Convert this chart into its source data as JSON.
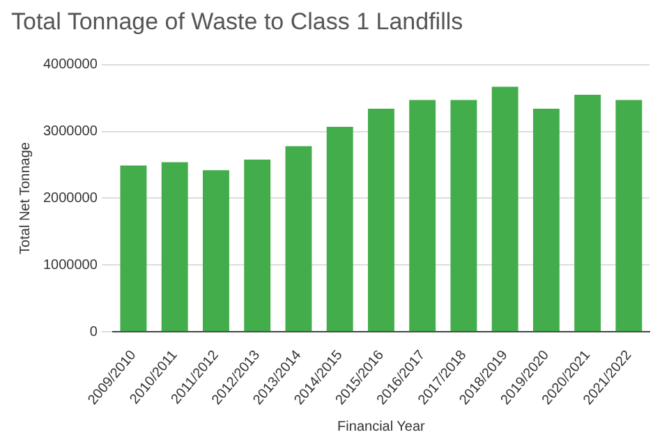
{
  "chart_data": {
    "type": "bar",
    "title": "Total Tonnage of Waste to Class 1 Landfills",
    "xlabel": "Financial Year",
    "ylabel": "Total Net Tonnage",
    "categories": [
      "2009/2010",
      "2010/2011",
      "2011/2012",
      "2012/2013",
      "2013/2014",
      "2014/2015",
      "2015/2016",
      "2016/2017",
      "2017/2018",
      "2018/2019",
      "2019/2020",
      "2020/2021",
      "2021/2022"
    ],
    "values": [
      2490000,
      2540000,
      2420000,
      2580000,
      2780000,
      3070000,
      3340000,
      3470000,
      3470000,
      3670000,
      3340000,
      3550000,
      3470000
    ],
    "color": "#43ac4b",
    "ylim": [
      0,
      4000000
    ],
    "yticks": [
      0,
      1000000,
      2000000,
      3000000,
      4000000
    ],
    "grid": "y",
    "legend": false
  }
}
